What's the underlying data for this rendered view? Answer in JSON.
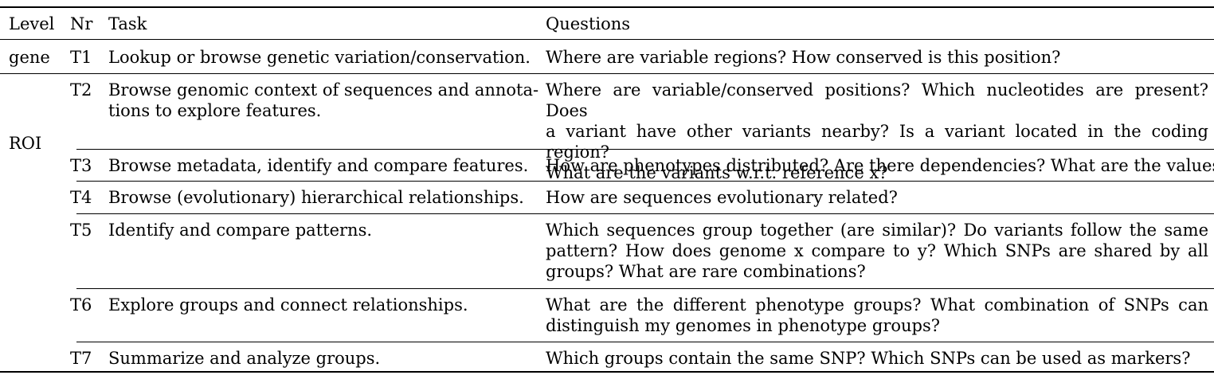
{
  "header": {
    "level": "Level",
    "nr": "Nr",
    "task": "Task",
    "questions": "Questions"
  },
  "levels": {
    "gene": "gene",
    "roi": "ROI"
  },
  "rows": [
    {
      "nr": "T1",
      "task_lines": [
        "Lookup or browse genetic variation/conservation."
      ],
      "question_lines": [
        "Where are variable regions? How conserved is this position?"
      ]
    },
    {
      "nr": "T2",
      "task_lines": [
        "Browse genomic context of sequences and annota-",
        "tions to explore features."
      ],
      "question_lines": [
        "Where are variable/conserved positions?  Which nucleotides are present? Does",
        "a variant have other variants nearby? Is a variant located in the coding region?",
        "What are the variants w.r.t. reference x?"
      ]
    },
    {
      "nr": "T3",
      "task_lines": [
        "Browse metadata, identify and compare features."
      ],
      "question_lines": [
        "How are phenotypes distributed? Are there dependencies? What are the values?"
      ]
    },
    {
      "nr": "T4",
      "task_lines": [
        "Browse (evolutionary) hierarchical relationships."
      ],
      "question_lines": [
        "How are sequences evolutionary related?"
      ]
    },
    {
      "nr": "T5",
      "task_lines": [
        "Identify and compare patterns."
      ],
      "question_lines": [
        "Which sequences group together (are similar)? Do variants follow the same",
        "pattern? How does genome x compare to y? Which SNPs are shared by all",
        "groups? What are rare combinations?"
      ]
    },
    {
      "nr": "T6",
      "task_lines": [
        "Explore groups and connect relationships."
      ],
      "question_lines": [
        "What are the different phenotype groups? What combination of SNPs can",
        "distinguish my genomes in phenotype groups?"
      ]
    },
    {
      "nr": "T7",
      "task_lines": [
        "Summarize and analyze groups."
      ],
      "question_lines": [
        "Which groups contain the same SNP? Which SNPs can be used as markers?"
      ]
    }
  ]
}
